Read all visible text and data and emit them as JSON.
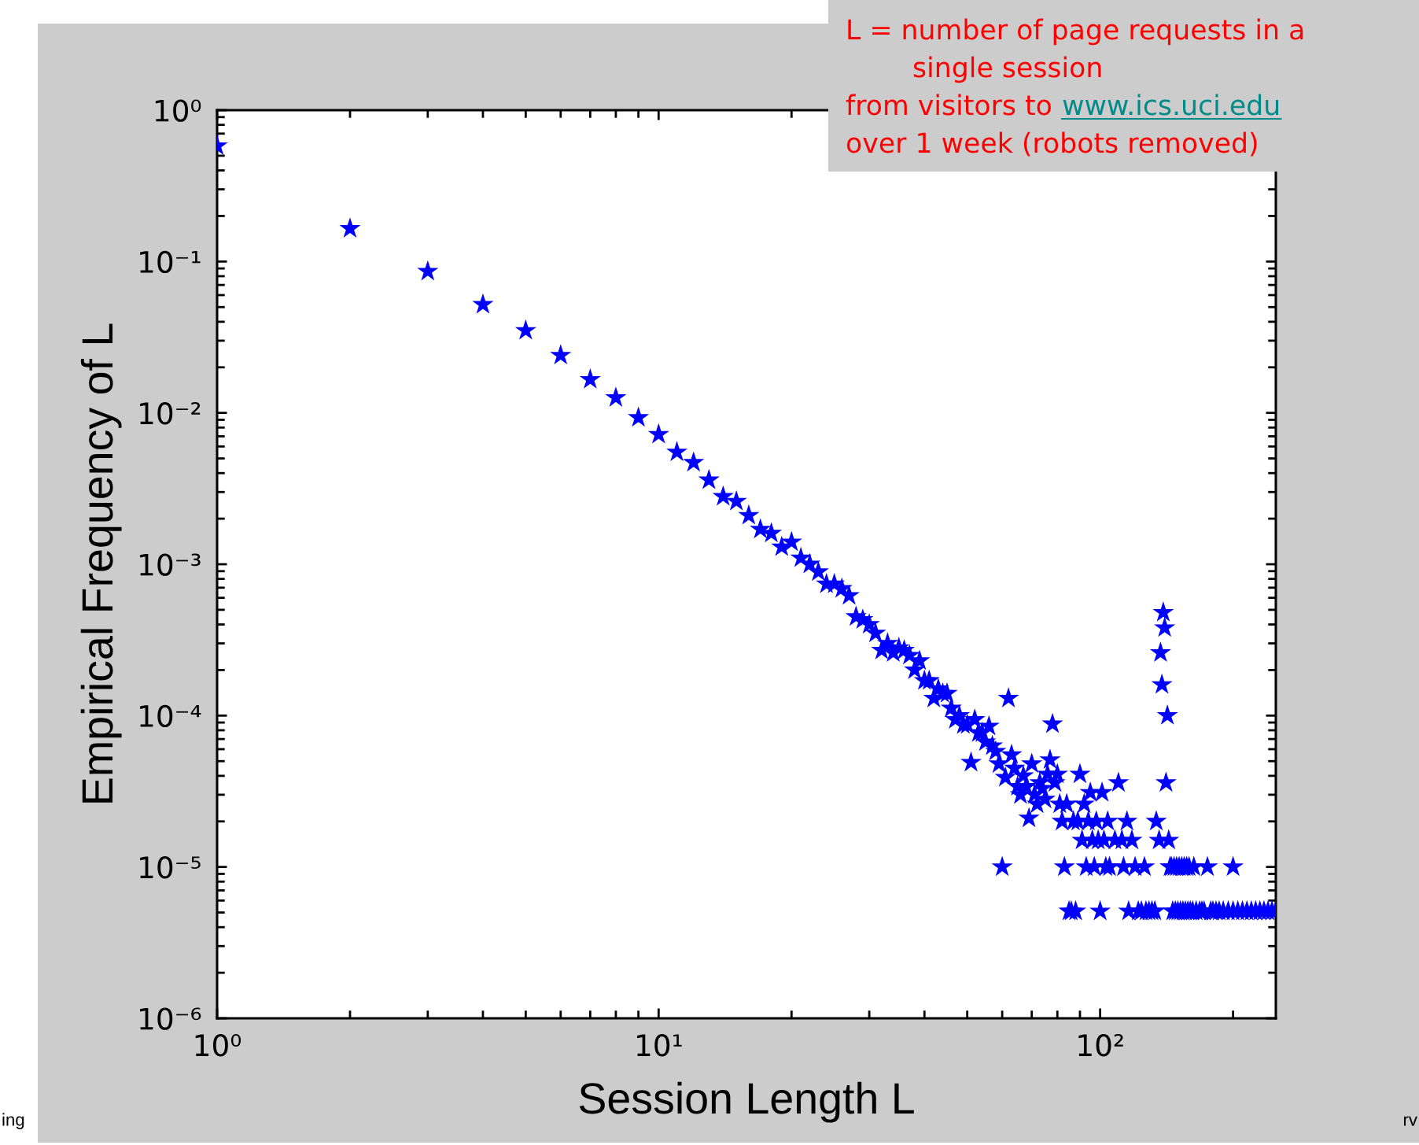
{
  "chart_data": {
    "type": "scatter",
    "xlabel": "Session Length L",
    "ylabel": "Empirical Frequency of L",
    "log": "xy",
    "marker": "star",
    "grid": false,
    "xlim": [
      1,
      250
    ],
    "xticks": [
      {
        "value": 1,
        "label": "10⁰"
      },
      {
        "value": 10,
        "label": "10¹"
      },
      {
        "value": 100,
        "label": "10²"
      }
    ],
    "ylim": [
      1e-06,
      1
    ],
    "yticks": [
      {
        "value": 1e-06,
        "label": "10⁻⁶"
      },
      {
        "value": 1e-05,
        "label": "10⁻⁵"
      },
      {
        "value": 0.0001,
        "label": "10⁻⁴"
      },
      {
        "value": 0.001,
        "label": "10⁻³"
      },
      {
        "value": 0.01,
        "label": "10⁻²"
      },
      {
        "value": 0.1,
        "label": "10⁻¹"
      },
      {
        "value": 1,
        "label": "10⁰"
      }
    ],
    "annotations": [
      "L = number of page requests in a",
      "single session",
      "from visitors to",
      "www.ics.uci.edu",
      "over 1 week (robots removed)",
      "ing",
      "rv"
    ],
    "series": [
      {
        "color": "#0000ff",
        "x": [
          1,
          2,
          3,
          4,
          5,
          6,
          7,
          8,
          9,
          10,
          11,
          12,
          13,
          14,
          15,
          16,
          17,
          18,
          19,
          20,
          21,
          22,
          23,
          24,
          25,
          26,
          27,
          28,
          29,
          30,
          31,
          32,
          33,
          34,
          35,
          36,
          37,
          38,
          39,
          40,
          41,
          42,
          43,
          44,
          45,
          46,
          47,
          48,
          49,
          50,
          51,
          52,
          53,
          54,
          55,
          56,
          57,
          58,
          59,
          60,
          61,
          62,
          63,
          64,
          65,
          66,
          67,
          68,
          69,
          70,
          71,
          72,
          73,
          74,
          75,
          76,
          77,
          78,
          79,
          80,
          81,
          82,
          83,
          84,
          85,
          86,
          87,
          88,
          89,
          90,
          91,
          92,
          93,
          94,
          95,
          96,
          97,
          98,
          99,
          100,
          101,
          102,
          103,
          104,
          105,
          108,
          110,
          112,
          113,
          115,
          116,
          118,
          120,
          122,
          124,
          126,
          127,
          129,
          131,
          133,
          134,
          136,
          137,
          138,
          139,
          140,
          141,
          142,
          143,
          144,
          145,
          146,
          147,
          148,
          149,
          150,
          151,
          152,
          153,
          154,
          155,
          156,
          157,
          158,
          159,
          160,
          162,
          163,
          165,
          168,
          170,
          172,
          175,
          178,
          180,
          183,
          186,
          190,
          195,
          200,
          200,
          205,
          210,
          215,
          220,
          225,
          230,
          235,
          240,
          245,
          250
        ],
        "values": [
          0.58,
          0.165,
          0.086,
          0.052,
          0.035,
          0.024,
          0.0166,
          0.0126,
          0.0093,
          0.0072,
          0.0055,
          0.0047,
          0.0036,
          0.0028,
          0.0026,
          0.0021,
          0.0017,
          0.0016,
          0.0013,
          0.0014,
          0.0011,
          0.001,
          0.00089,
          0.00074,
          0.00074,
          0.00069,
          0.00062,
          0.00045,
          0.00043,
          0.0004,
          0.00035,
          0.00027,
          0.0003,
          0.00026,
          0.00028,
          0.00027,
          0.00025,
          0.0002,
          0.00023,
          0.00017,
          0.00017,
          0.00013,
          0.00015,
          0.00014,
          0.00014,
          0.000112,
          9.4e-05,
          0.0001,
          8.7e-05,
          8.7e-05,
          4.9e-05,
          9.4e-05,
          7.7e-05,
          7.7e-05,
          6.7e-05,
          8.5e-05,
          6.3e-05,
          5.8e-05,
          4.8e-05,
          1e-05,
          3.9e-05,
          0.00013,
          5.5e-05,
          4.5e-05,
          3.4e-05,
          3e-05,
          4e-05,
          3.4e-05,
          2.1e-05,
          4.8e-05,
          3e-05,
          2.6e-05,
          3.6e-05,
          3.3e-05,
          2.8e-05,
          4.1e-05,
          5.1e-05,
          8.8e-05,
          3.6e-05,
          4.1e-05,
          2.6e-05,
          2e-05,
          1e-05,
          2.6e-05,
          5.1e-06,
          5.1e-06,
          2e-05,
          5.1e-06,
          2e-05,
          4.1e-05,
          1.5e-05,
          2.6e-05,
          1e-05,
          2e-05,
          3.1e-05,
          1.5e-05,
          1e-05,
          2e-05,
          1.5e-05,
          5.1e-06,
          3.1e-05,
          1.5e-05,
          1e-05,
          2e-05,
          1e-05,
          1.5e-05,
          3.6e-05,
          1.5e-05,
          1e-05,
          2e-05,
          5.1e-06,
          1.5e-05,
          1e-05,
          5.1e-06,
          5.1e-06,
          1e-05,
          5.1e-06,
          5.1e-06,
          5.1e-06,
          5.1e-06,
          2e-05,
          1.5e-05,
          0.00026,
          0.00016,
          0.00048,
          0.00038,
          3.6e-05,
          0.0001,
          1.5e-05,
          1e-05,
          1e-05,
          5.1e-06,
          1e-05,
          5.1e-06,
          1e-05,
          5.1e-06,
          1e-05,
          5.1e-06,
          1e-05,
          5.1e-06,
          1e-05,
          5.1e-06,
          1e-05,
          5.1e-06,
          1e-05,
          5.1e-06,
          5.1e-06,
          1e-05,
          5.1e-06,
          5.1e-06,
          5.1e-06,
          5.1e-06,
          1e-05,
          5.1e-06,
          5.1e-06,
          5.1e-06,
          5.1e-06,
          5.1e-06,
          5.1e-06,
          1e-05,
          5.1e-06,
          5.1e-06,
          5.1e-06,
          5.1e-06,
          5.1e-06,
          5.1e-06,
          5.1e-06,
          5.1e-06,
          5.1e-06,
          5.1e-06,
          5.1e-06
        ]
      }
    ]
  }
}
